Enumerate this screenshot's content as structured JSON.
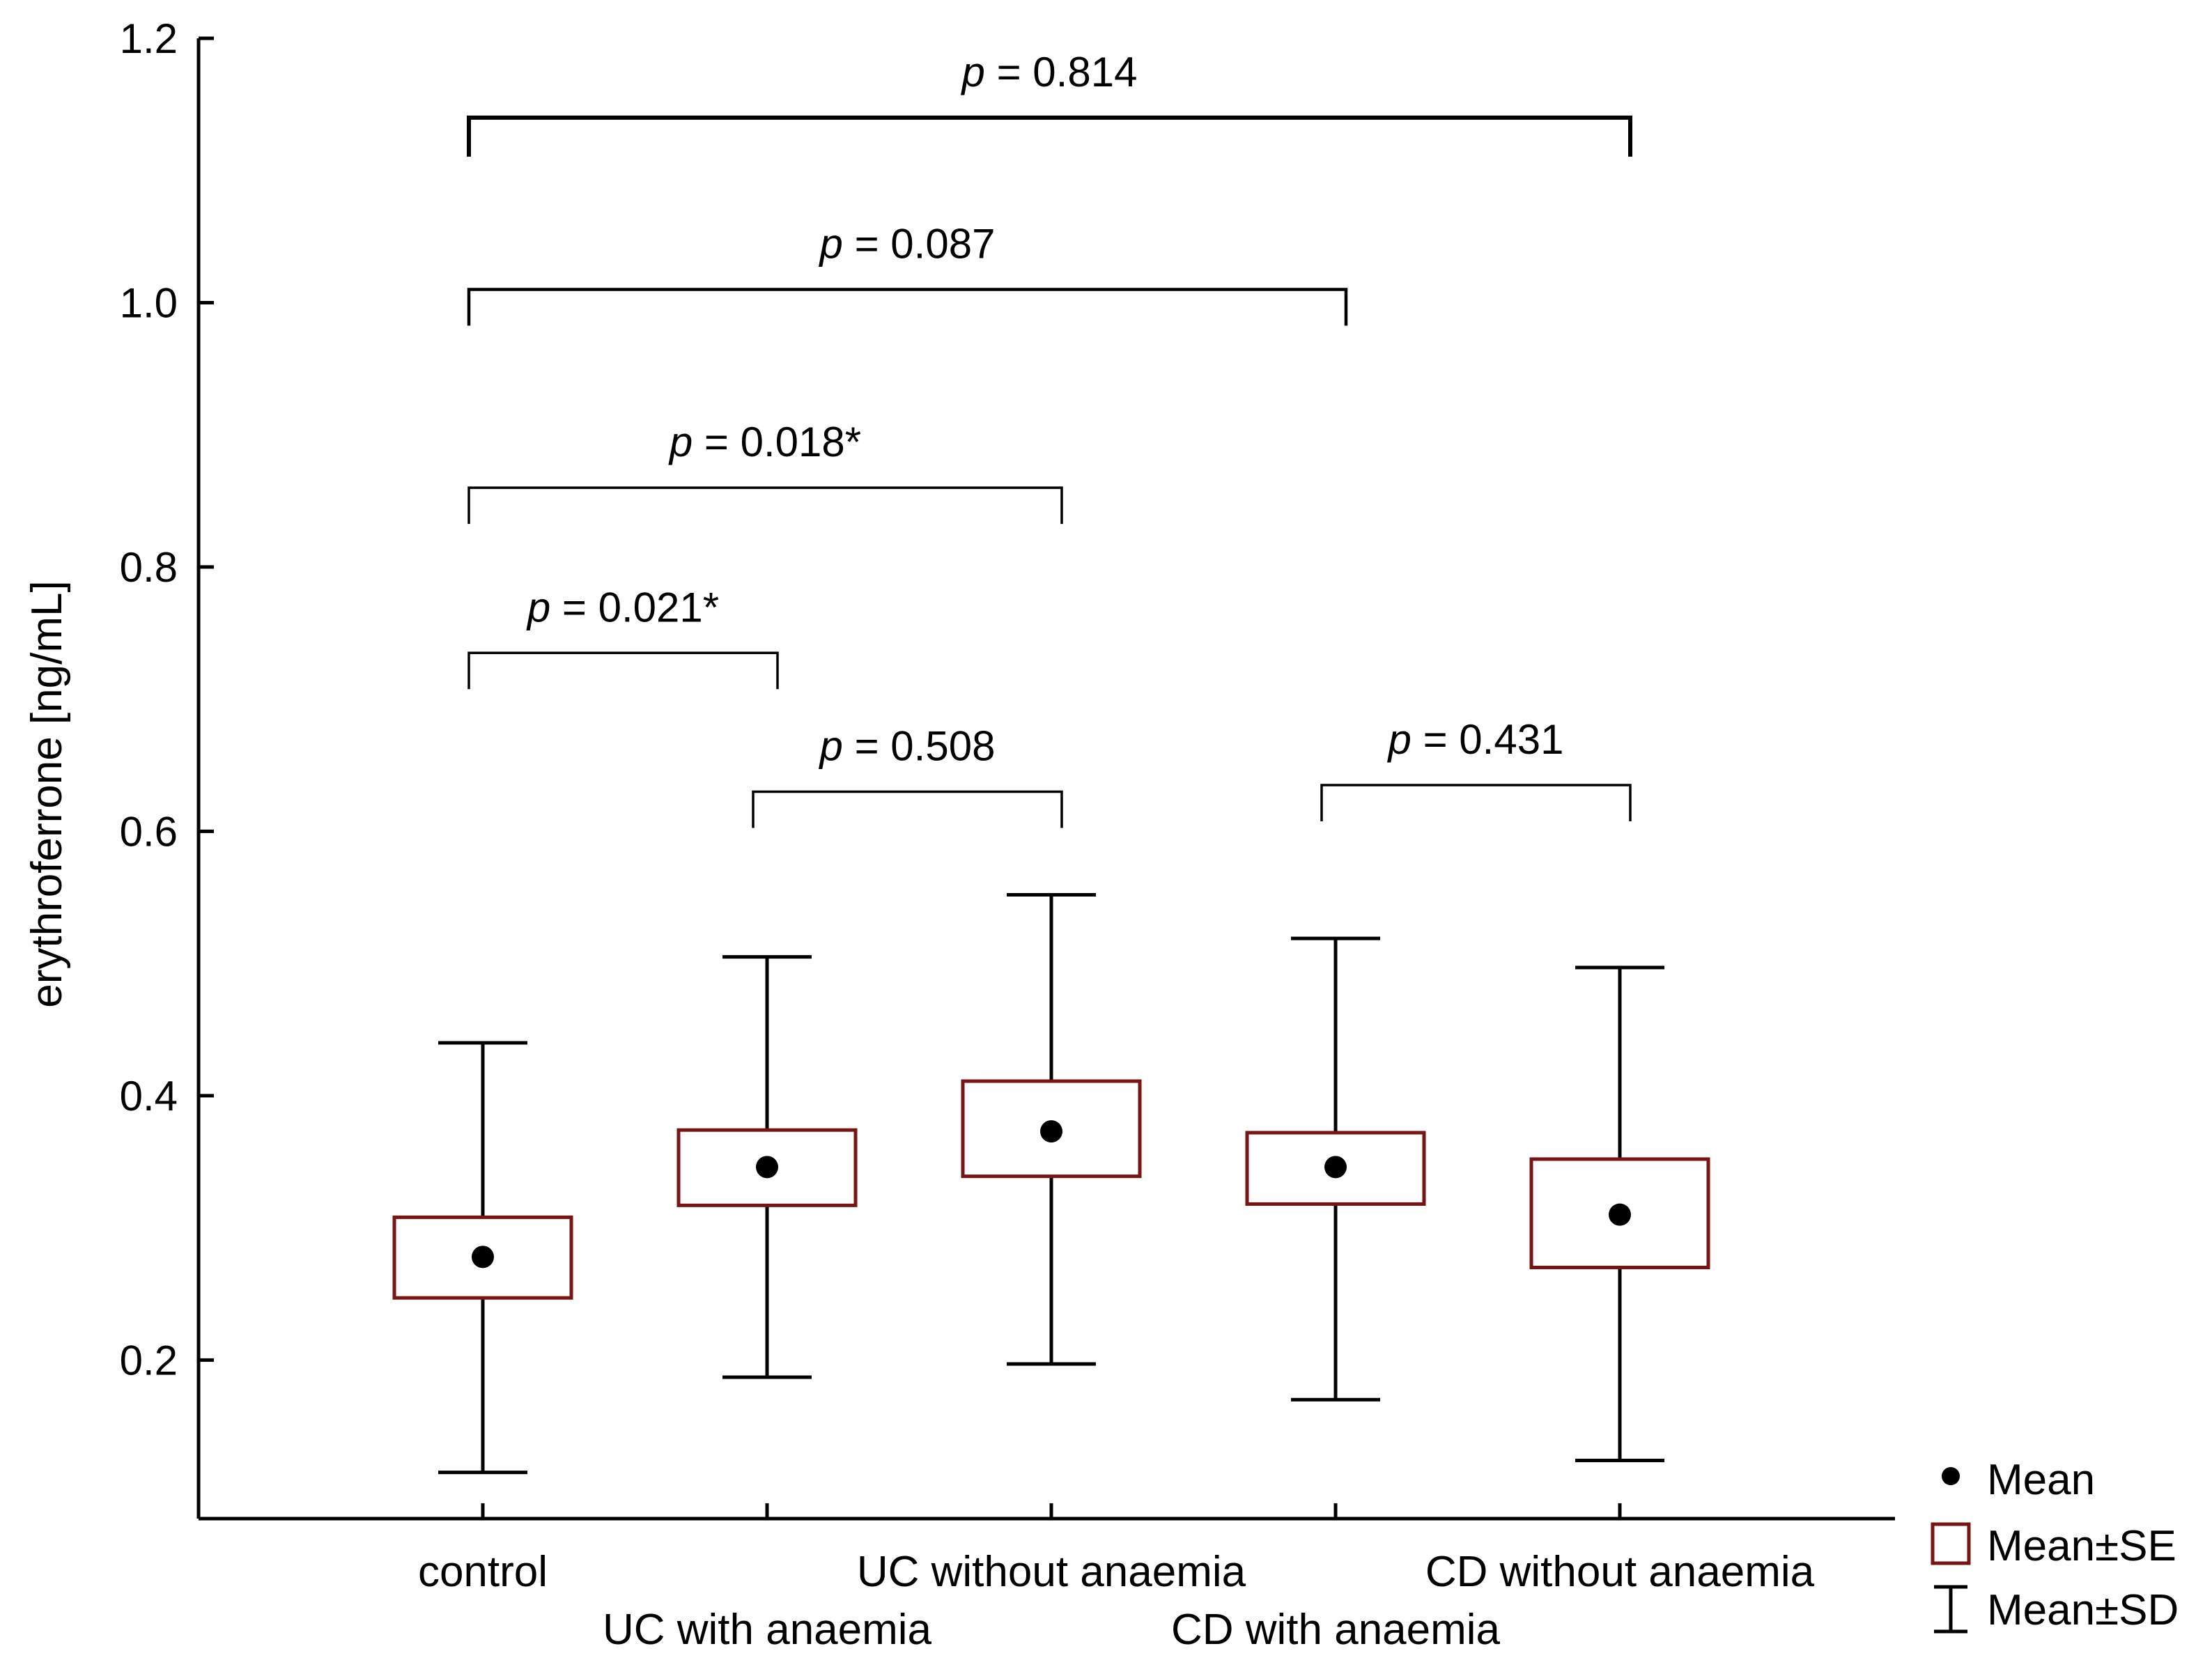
{
  "chart_data": {
    "type": "box",
    "ylabel": "erythroferrone [ng/mL]",
    "ylim": [
      0.08,
      1.2
    ],
    "yticks": [
      0.2,
      0.4,
      0.6,
      0.8,
      1.0,
      1.2
    ],
    "ytick_labels": [
      "0.2",
      "0.4",
      "0.6",
      "0.8",
      "1.0",
      "1.2"
    ],
    "categories": [
      "control",
      "UC with anaemia",
      "UC without anaemia",
      "CD with anaemia",
      "CD without anaemia"
    ],
    "groups": [
      {
        "name": "control",
        "mean": 0.278,
        "se_low": 0.247,
        "se_high": 0.308,
        "sd_low": 0.115,
        "sd_high": 0.44
      },
      {
        "name": "UC with anaemia",
        "mean": 0.346,
        "se_low": 0.317,
        "se_high": 0.374,
        "sd_low": 0.187,
        "sd_high": 0.505
      },
      {
        "name": "UC without anaemia",
        "mean": 0.373,
        "se_low": 0.339,
        "se_high": 0.411,
        "sd_low": 0.197,
        "sd_high": 0.552
      },
      {
        "name": "CD with anaemia",
        "mean": 0.346,
        "se_low": 0.318,
        "se_high": 0.372,
        "sd_low": 0.17,
        "sd_high": 0.519
      },
      {
        "name": "CD without anaemia",
        "mean": 0.31,
        "se_low": 0.27,
        "se_high": 0.352,
        "sd_low": 0.124,
        "sd_high": 0.497
      }
    ],
    "comparisons": [
      {
        "from": 0,
        "to": 4,
        "y": 1.14,
        "p_prefix": "p",
        "p_value": " = 0.814"
      },
      {
        "from": 0,
        "to": 3,
        "y": 1.01,
        "p_prefix": "p",
        "p_value": " = 0.087"
      },
      {
        "from": 0,
        "to": 2,
        "y": 0.86,
        "p_prefix": "p",
        "p_value": " = 0.018*"
      },
      {
        "from": 0,
        "to": 1,
        "y": 0.735,
        "p_prefix": "p",
        "p_value": " = 0.021*"
      },
      {
        "from": 1,
        "to": 2,
        "y": 0.63,
        "p_prefix": "p",
        "p_value": " = 0.508"
      },
      {
        "from": 3,
        "to": 4,
        "y": 0.635,
        "p_prefix": "p",
        "p_value": " = 0.431"
      }
    ],
    "legend": {
      "placement": "bottom-right",
      "items": [
        {
          "symbol": "dot",
          "label": "Mean"
        },
        {
          "symbol": "box",
          "label": "Mean±SE"
        },
        {
          "symbol": "whisker",
          "label": "Mean±SD"
        }
      ]
    },
    "colors": {
      "se_box": "#7a1414",
      "marks": "#000000"
    }
  }
}
